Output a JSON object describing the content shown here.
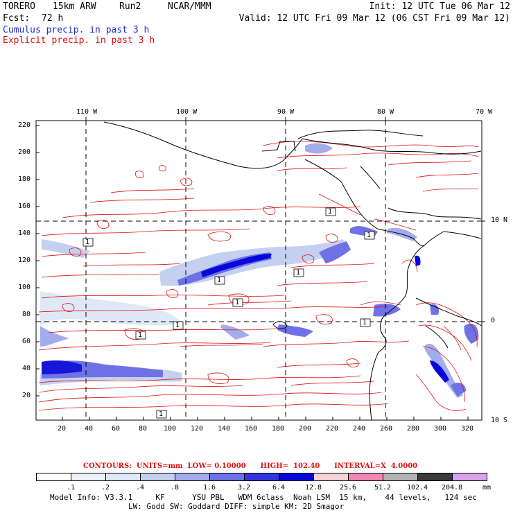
{
  "header": {
    "model": "TORERO",
    "resolution": "15km ARW",
    "run": "Run2",
    "org": "NCAR/MMM",
    "init": "Init: 12 UTC Tue 06 Mar 12",
    "fcst_label": "Fcst:",
    "fcst_value": "72 h",
    "valid": "Valid: 12 UTC Fri 09 Mar 12 (06 CST Fri 09 Mar 12)"
  },
  "legend": {
    "cumulus": "Cumulus precip. in past 3 h",
    "explicit": "Explicit precip. in past 3 h",
    "cumulus_color": "#1f2bd6",
    "explicit_color": "#e01010"
  },
  "map": {
    "lon_labels": [
      "110 W",
      "100 W",
      "90 W",
      "80 W",
      "70 W"
    ],
    "lat_labels": [
      "10 N",
      "0",
      "10 S"
    ],
    "y_ticks": [
      "220",
      "200",
      "180",
      "160",
      "140",
      "120",
      "100",
      "80",
      "60",
      "40",
      "20"
    ],
    "x_ticks": [
      "20",
      "40",
      "60",
      "80",
      "100",
      "120",
      "140",
      "160",
      "180",
      "200",
      "220",
      "240",
      "260",
      "280",
      "300",
      "320"
    ],
    "contour_labels": [
      "1",
      "1",
      "1",
      "1",
      "1",
      "1",
      "1",
      "1",
      "1",
      "1"
    ]
  },
  "colorbar": {
    "contours_line": "CONTOURS:  UNITS=mm  LOW= 0.10000      HIGH=  102.40      INTERVAL=X  4.0000",
    "labels": [
      ".1",
      ".2",
      ".4",
      ".8",
      "1.6",
      "3.2",
      "6.4",
      "12.8",
      "25.6",
      "51.2",
      "102.4",
      "204.8"
    ],
    "unit": "mm",
    "colors": [
      "#ffffff",
      "#ffffff",
      "#eef3fb",
      "#dfe8f7",
      "#c5d0f0",
      "#a3acec",
      "#6f72e6",
      "#3535e0",
      "#0707dc",
      "#f5d4d8",
      "#f088b4",
      "#b4b4b4",
      "#3a3a3a",
      "#d8a4ee"
    ]
  },
  "footer": {
    "line1": "Model Info: V3.3.1     KF      YSU PBL   WDM 6class  Noah LSM  15 km,    44 levels,   124 sec",
    "line2": "LW: Godd SW: Goddard DIFF: simple KM: 2D Smagor"
  }
}
